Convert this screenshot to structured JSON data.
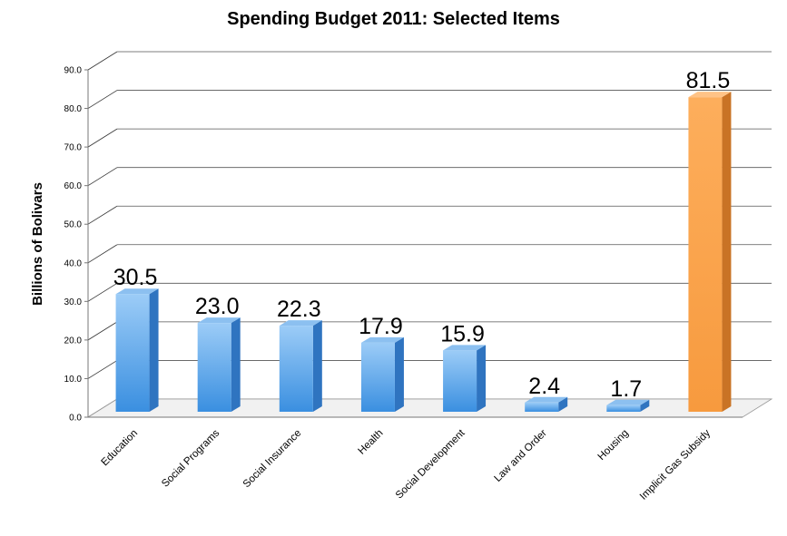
{
  "chart_data": {
    "type": "bar",
    "title": "Spending Budget 2011: Selected Items",
    "xlabel": "",
    "ylabel": "Billions of Bolivars",
    "ylim": [
      0,
      90
    ],
    "yticks": [
      "0.0",
      "10.0",
      "20.0",
      "30.0",
      "40.0",
      "50.0",
      "60.0",
      "70.0",
      "80.0",
      "90.0"
    ],
    "categories": [
      "Education",
      "Social Programs",
      "Social Insurance",
      "Health",
      "Social Development",
      "Law and Order",
      "Housing",
      "Implicit Gas Subsidy"
    ],
    "values": [
      30.5,
      23.0,
      22.3,
      17.9,
      15.9,
      2.4,
      1.7,
      81.5
    ],
    "value_labels": [
      "30.5",
      "23.0",
      "22.3",
      "17.9",
      "15.9",
      "2.4",
      "1.7",
      "81.5"
    ],
    "bar_colors": [
      "#4a9be6",
      "#4a9be6",
      "#4a9be6",
      "#4a9be6",
      "#4a9be6",
      "#4a9be6",
      "#4a9be6",
      "#f7a04a"
    ],
    "grid": true,
    "legend": "none",
    "style": "3d"
  }
}
